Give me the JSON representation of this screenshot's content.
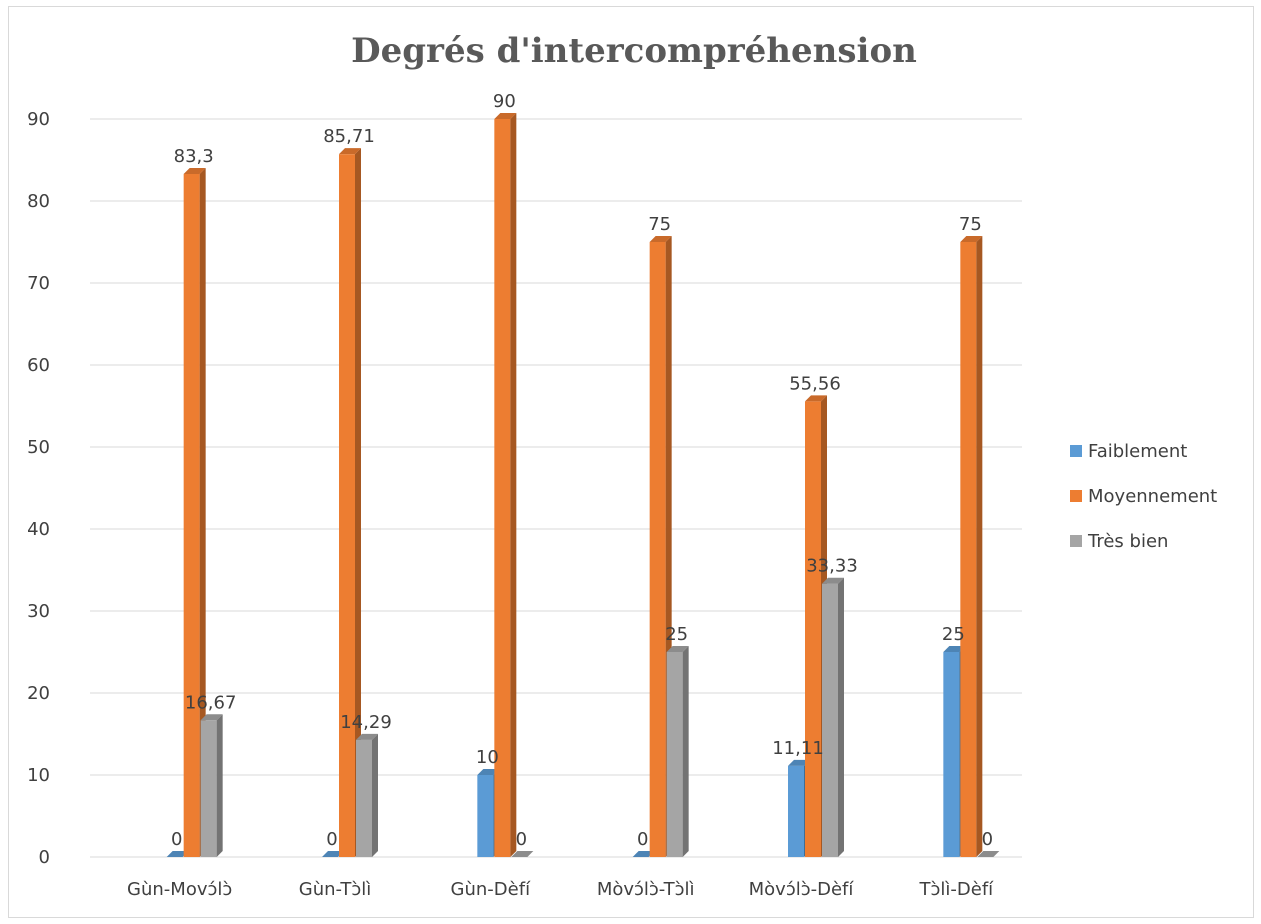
{
  "chart_data": {
    "type": "bar",
    "title": "Degrés d'intercompréhension",
    "categories": [
      "Gùn-Movɔ́lɔ̀",
      "Gùn-Tɔ̀lì",
      "Gùn-Dèfí",
      "Mòvɔ́lɔ̀-Tɔ̀lì",
      "Mòvɔ́lɔ̀-Dèfí",
      "Tɔ̀lì-Dèfí"
    ],
    "series": [
      {
        "name": "Faiblement",
        "color": "#5b9bd5",
        "values": [
          0,
          0,
          10,
          0,
          11.11,
          25
        ],
        "labels": [
          "0",
          "0",
          "10",
          "0",
          "11,11",
          "25"
        ]
      },
      {
        "name": "Moyennement",
        "color": "#ed7d31",
        "values": [
          83.3,
          85.71,
          90,
          75,
          55.56,
          75
        ],
        "labels": [
          "83,3",
          "85,71",
          "90",
          "75",
          "55,56",
          "75"
        ]
      },
      {
        "name": "Très bien",
        "color": "#a5a5a5",
        "values": [
          16.67,
          14.29,
          0,
          25,
          33.33,
          0
        ],
        "labels": [
          "16,67",
          "14,29",
          "0",
          "25",
          "33,33",
          "0"
        ]
      }
    ],
    "ylim": [
      0,
      90
    ],
    "yticks": [
      "0",
      "10",
      "20",
      "30",
      "40",
      "50",
      "60",
      "70",
      "80",
      "90"
    ],
    "grid": true,
    "legend_position": "right"
  }
}
